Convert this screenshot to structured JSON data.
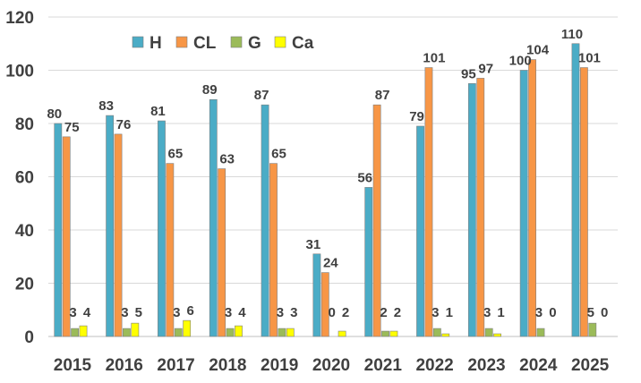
{
  "chart_data": {
    "type": "bar",
    "categories": [
      "2015",
      "2016",
      "2017",
      "2018",
      "2019",
      "2020",
      "2021",
      "2022",
      "2023",
      "2024",
      "2025"
    ],
    "series": [
      {
        "name": "H",
        "color": "#4BACC6",
        "values": [
          80,
          83,
          81,
          89,
          87,
          31,
          56,
          79,
          95,
          100,
          110
        ],
        "labels": [
          "80",
          "83",
          "81",
          "89",
          "87",
          "31",
          "56",
          "79",
          "95",
          "100",
          "110"
        ]
      },
      {
        "name": "CL",
        "color": "#F79646",
        "values": [
          75,
          76,
          65,
          63,
          65,
          24,
          87,
          101,
          97,
          104,
          101
        ],
        "labels": [
          "75",
          "76",
          "65",
          "63",
          "65",
          "24",
          "87",
          "101",
          "97",
          "104",
          "101"
        ]
      },
      {
        "name": "G",
        "color": "#9BBB59",
        "values": [
          3,
          3,
          3,
          3,
          3,
          0,
          2,
          3,
          3,
          3,
          5
        ],
        "labels": [
          "3",
          "3",
          "3",
          "3",
          "3",
          "0",
          "2",
          "3",
          "3",
          "3",
          "5"
        ]
      },
      {
        "name": "Ca",
        "color": "#FFFF00",
        "values": [
          4,
          5,
          6,
          4,
          3,
          2,
          2,
          1,
          1,
          0,
          0
        ],
        "labels": [
          "4",
          "5",
          "6",
          "4",
          "3",
          "2",
          "2",
          "1",
          "1",
          "0",
          "0"
        ]
      }
    ],
    "yticks": [
      "0",
      "20",
      "40",
      "60",
      "80",
      "100",
      "120"
    ],
    "ylim": [
      0,
      120
    ],
    "grid": true,
    "legend": "top-left",
    "title": "",
    "xlabel": "",
    "ylabel": ""
  }
}
